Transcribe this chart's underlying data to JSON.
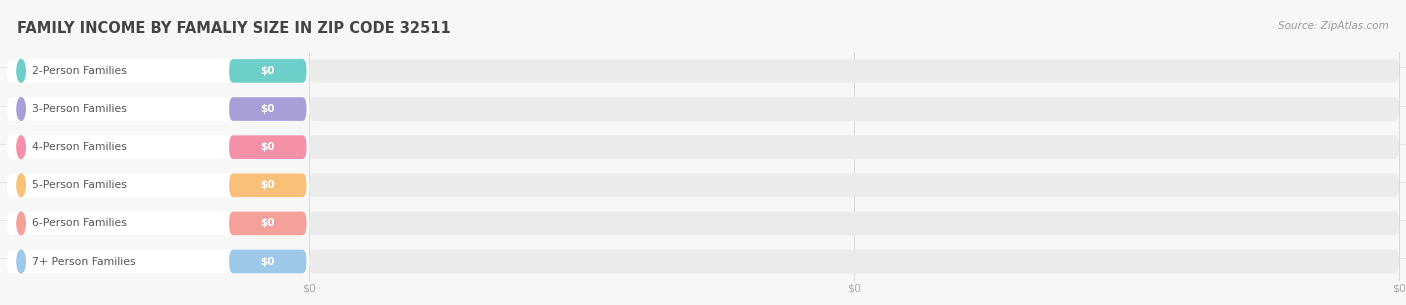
{
  "title": "FAMILY INCOME BY FAMALIY SIZE IN ZIP CODE 32511",
  "source": "Source: ZipAtlas.com",
  "categories": [
    "2-Person Families",
    "3-Person Families",
    "4-Person Families",
    "5-Person Families",
    "6-Person Families",
    "7+ Person Families"
  ],
  "values": [
    0,
    0,
    0,
    0,
    0,
    0
  ],
  "bar_colors": [
    "#6ecfca",
    "#a89fd8",
    "#f490a8",
    "#f9c07a",
    "#f5a09a",
    "#9dc8e8"
  ],
  "bg_color": "#f7f7f7",
  "bar_bg_color": "#ebebeb",
  "title_color": "#444444",
  "label_color": "#555555",
  "value_label_color": "#ffffff",
  "tick_label_color": "#aaaaaa",
  "source_color": "#999999",
  "title_fontsize": 10.5,
  "label_fontsize": 7.8,
  "value_fontsize": 7.5,
  "tick_fontsize": 8,
  "source_fontsize": 7.5
}
